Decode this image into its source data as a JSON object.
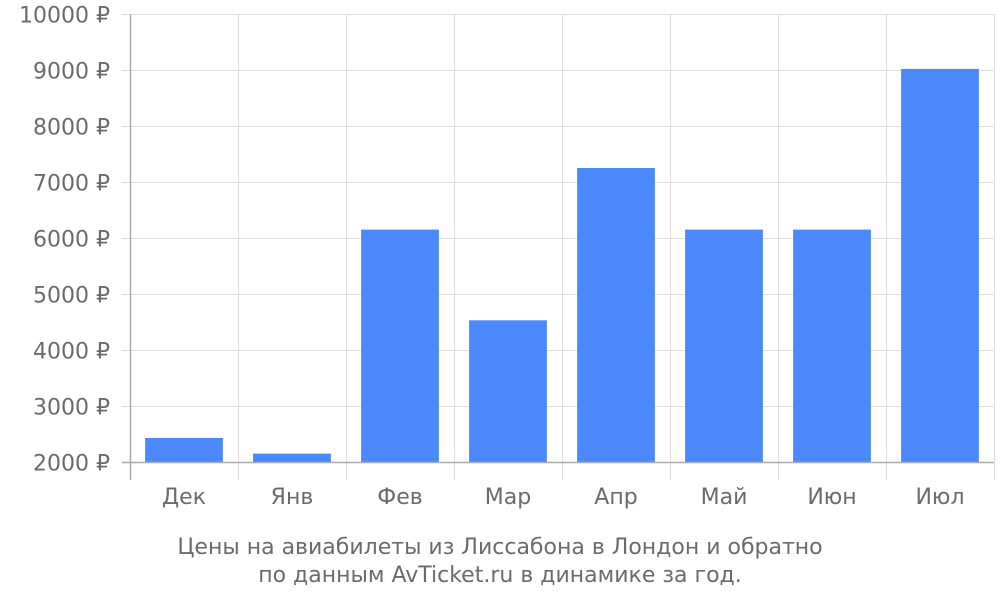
{
  "caption": {
    "line1": "Цены на авиабилеты из Лиссабона в Лондон и обратно",
    "line2": "по данным AvTicket.ru в динамике за год."
  },
  "colors": {
    "bar": "#4b89fa",
    "grid": "#dddddd",
    "axis": "#aaaaaa",
    "text": "#6b6b6b"
  },
  "chart_data": {
    "type": "bar",
    "categories": [
      "Дек",
      "Янв",
      "Фев",
      "Мар",
      "Апр",
      "Май",
      "Июн",
      "Июл"
    ],
    "values": [
      2430,
      2150,
      6150,
      4530,
      7250,
      6150,
      6150,
      9020
    ],
    "ylim": [
      2000,
      10000
    ],
    "yticks": [
      2000,
      3000,
      4000,
      5000,
      6000,
      7000,
      8000,
      9000,
      10000
    ],
    "ytick_labels": [
      "2000 ₽",
      "3000 ₽",
      "4000 ₽",
      "5000 ₽",
      "6000 ₽",
      "7000 ₽",
      "8000 ₽",
      "9000 ₽",
      "10000 ₽"
    ],
    "grid": true,
    "title": "",
    "xlabel": "",
    "ylabel": ""
  }
}
